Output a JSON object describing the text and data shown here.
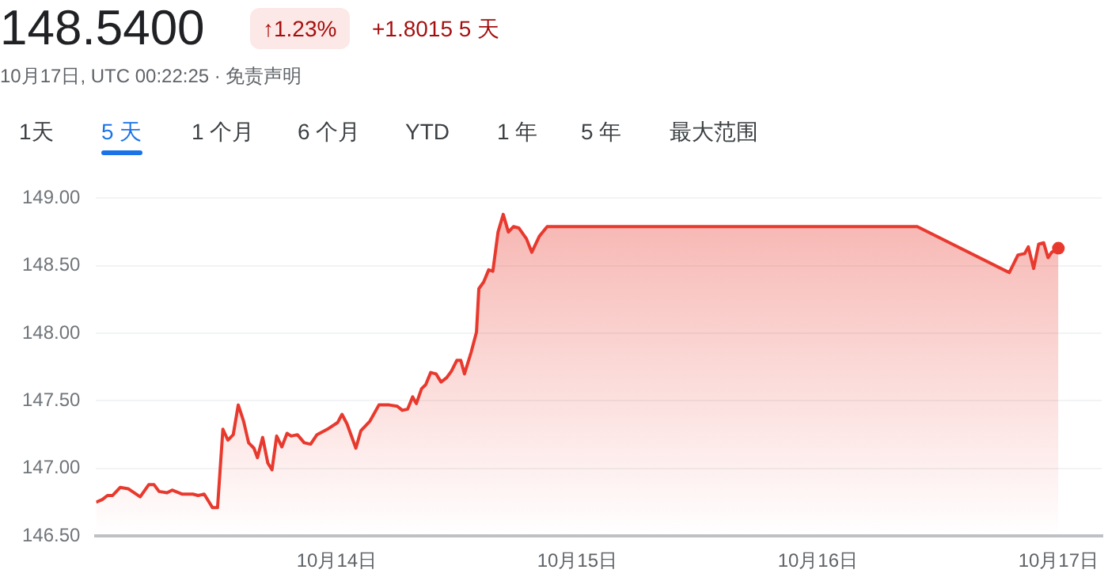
{
  "chart_data": {
    "type": "area",
    "title": "148.5400",
    "annotations": [
      "↑1.23%",
      "+1.8015 5 天",
      "10月17日, UTC 00:22:25 · 免责声明",
      "1天",
      "5 天",
      "1 个月",
      "6 个月",
      "YTD",
      "1 年",
      "5 年",
      "最大范围"
    ],
    "series": [
      {
        "color": "#e8392e",
        "x": [
          "--10-13T00:00",
          "--10-13T00:37",
          "--10-13T01:08",
          "--10-13T01:39",
          "--10-13T02:25",
          "--10-13T03:12",
          "--10-13T04:24",
          "--10-13T05:15",
          "--10-13T05:47",
          "--10-13T06:17",
          "--10-13T07:05",
          "--10-13T07:35",
          "--10-13T08:37",
          "--10-13T09:39",
          "--10-13T10:11",
          "--10-13T10:47",
          "--10-13T11:37",
          "--10-13T12:07",
          "--10-13T12:39",
          "--10-13T13:09",
          "--10-13T13:41",
          "--10-13T14:11",
          "--10-13T14:43",
          "--10-13T15:13",
          "--10-13T15:45",
          "--10-13T16:06",
          "--10-13T16:37",
          "--10-13T17:08",
          "--10-13T17:33",
          "--10-13T18:01",
          "--10-13T18:32",
          "--10-13T19:03",
          "--10-13T19:28",
          "--10-13T20:05",
          "--10-13T20:46",
          "--10-13T21:24",
          "--10-13T22:02",
          "--10-13T23:04",
          "--10-14T00:06",
          "--10-14T00:32",
          "--10-14T01:02",
          "--10-14T01:55",
          "--10-14T02:25",
          "--10-14T03:19",
          "--10-14T04:13",
          "--10-14T05:15",
          "--10-14T06:03",
          "--10-14T06:33",
          "--10-14T07:05",
          "--10-14T07:35",
          "--10-14T07:57",
          "--10-14T08:28",
          "--10-14T08:53",
          "--10-14T09:23",
          "--10-14T09:55",
          "--10-14T10:25",
          "--10-14T10:57",
          "--10-14T11:27",
          "--10-14T11:59",
          "--10-14T12:23",
          "--10-14T12:45",
          "--10-14T13:25",
          "--10-14T13:57",
          "--10-14T14:11",
          "--10-14T14:40",
          "--10-14T15:10",
          "--10-14T15:35",
          "--10-14T16:06",
          "--10-14T16:37",
          "--10-14T17:08",
          "--10-14T17:38",
          "--10-14T18:10",
          "--10-14T18:56",
          "--10-14T19:28",
          "--10-14T20:14",
          "--10-14T21:00",
          "--10-16T09:55",
          "--10-16T19:06",
          "--10-16T19:58",
          "--10-16T20:38",
          "--10-16T21:00",
          "--10-16T21:32",
          "--10-16T22:02",
          "--10-16T22:32",
          "--10-16T22:58",
          "--10-16T23:20",
          "--10-17T00:00"
        ],
        "values": [
          146.75,
          146.77,
          146.8,
          146.8,
          146.86,
          146.85,
          146.79,
          146.88,
          146.88,
          146.83,
          146.82,
          146.84,
          146.81,
          146.81,
          146.8,
          146.81,
          146.71,
          146.71,
          147.29,
          147.21,
          147.25,
          147.47,
          147.35,
          147.19,
          147.15,
          147.08,
          147.23,
          147.04,
          146.99,
          147.24,
          147.16,
          147.26,
          147.24,
          147.25,
          147.19,
          147.18,
          147.25,
          147.29,
          147.34,
          147.4,
          147.33,
          147.15,
          147.28,
          147.35,
          147.47,
          147.47,
          147.46,
          147.43,
          147.44,
          147.53,
          147.48,
          147.59,
          147.62,
          147.71,
          147.7,
          147.64,
          147.67,
          147.72,
          147.8,
          147.8,
          147.7,
          147.86,
          148.01,
          148.33,
          148.38,
          148.47,
          148.46,
          148.75,
          148.88,
          148.75,
          148.79,
          148.78,
          148.7,
          148.6,
          148.72,
          148.79,
          148.79,
          148.45,
          148.58,
          148.59,
          148.64,
          148.48,
          148.66,
          148.67,
          148.56,
          148.6,
          148.63
        ]
      }
    ],
    "xlim": [
      "--10-13T00:00",
      "--10-17T04:19"
    ],
    "xticks": [
      {
        "value": "--10-14",
        "label": "10月14日"
      },
      {
        "value": "--10-15",
        "label": "10月15日"
      },
      {
        "value": "--10-16",
        "label": "10月16日"
      },
      {
        "value": "--10-17",
        "label": "10月17日"
      }
    ],
    "ylim": [
      146.5,
      149
    ],
    "yticks": [
      {
        "value": 146.5,
        "label": "146.50"
      },
      {
        "value": 147,
        "label": "147.00"
      },
      {
        "value": 147.5,
        "label": "147.50"
      },
      {
        "value": 148,
        "label": "148.00"
      },
      {
        "value": 148.5,
        "label": "148.50"
      },
      {
        "value": 149,
        "label": "149.00"
      }
    ],
    "grid": "y",
    "legend": false
  }
}
